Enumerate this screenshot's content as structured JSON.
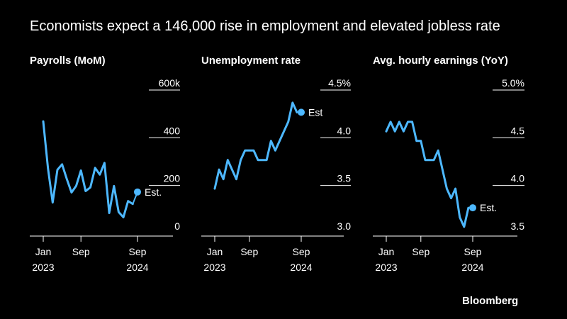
{
  "headline": "Economists expect a 146,000 rise in employment and elevated jobless rate",
  "source": "Bloomberg",
  "colors": {
    "line": "#4db8ff",
    "background": "#000000",
    "grid": "#ffffff",
    "text": "#ffffff"
  },
  "chart_data": [
    {
      "type": "line",
      "title": "Payrolls (MoM)",
      "ylim": [
        0,
        600
      ],
      "yticks": [
        {
          "value": 0,
          "label": "0"
        },
        {
          "value": 200,
          "label": "200"
        },
        {
          "value": 400,
          "label": "400"
        },
        {
          "value": 600,
          "label": "600k"
        }
      ],
      "xticks": [
        {
          "value": 0,
          "label": "Jan",
          "sub": "2023"
        },
        {
          "value": 8,
          "label": "Sep",
          "sub": ""
        },
        {
          "value": 20,
          "label": "Sep",
          "sub": "2024"
        }
      ],
      "x": [
        0,
        1,
        2,
        3,
        4,
        5,
        6,
        7,
        8,
        9,
        10,
        11,
        12,
        13,
        14,
        15,
        16,
        17,
        18,
        19
      ],
      "values": [
        442,
        245,
        102,
        239,
        262,
        200,
        144,
        172,
        236,
        150,
        165,
        247,
        219,
        268,
        58,
        171,
        62,
        40,
        108,
        96
      ],
      "estimate": {
        "x": 20,
        "value": 146,
        "label": "Est."
      }
    },
    {
      "type": "line",
      "title": "Unemployment rate",
      "ylim": [
        3.0,
        4.5
      ],
      "yticks": [
        {
          "value": 3.0,
          "label": "3.0"
        },
        {
          "value": 3.5,
          "label": "3.5"
        },
        {
          "value": 4.0,
          "label": "4.0"
        },
        {
          "value": 4.5,
          "label": "4.5%"
        }
      ],
      "xticks": [
        {
          "value": 0,
          "label": "Jan",
          "sub": "2023"
        },
        {
          "value": 8,
          "label": "Sep",
          "sub": ""
        },
        {
          "value": 20,
          "label": "Sep",
          "sub": "2024"
        }
      ],
      "x": [
        0,
        1,
        2,
        3,
        4,
        5,
        6,
        7,
        8,
        9,
        10,
        11,
        12,
        13,
        14,
        15,
        16,
        17,
        18,
        19
      ],
      "values": [
        3.4,
        3.6,
        3.5,
        3.7,
        3.6,
        3.5,
        3.7,
        3.8,
        3.8,
        3.8,
        3.7,
        3.7,
        3.7,
        3.9,
        3.8,
        3.9,
        4.0,
        4.1,
        4.3,
        4.2
      ],
      "estimate": {
        "x": 20,
        "value": 4.2,
        "label": "Est"
      }
    },
    {
      "type": "line",
      "title": "Avg. hourly earnings (YoY)",
      "ylim": [
        3.5,
        5.0
      ],
      "yticks": [
        {
          "value": 3.5,
          "label": "3.5"
        },
        {
          "value": 4.0,
          "label": "4.0"
        },
        {
          "value": 4.5,
          "label": "4.5"
        },
        {
          "value": 5.0,
          "label": "5.0%"
        }
      ],
      "xticks": [
        {
          "value": 0,
          "label": "Jan",
          "sub": "2023"
        },
        {
          "value": 8,
          "label": "Sep",
          "sub": ""
        },
        {
          "value": 20,
          "label": "Sep",
          "sub": "2024"
        }
      ],
      "x": [
        0,
        1,
        2,
        3,
        4,
        5,
        6,
        7,
        8,
        9,
        10,
        11,
        12,
        13,
        14,
        15,
        16,
        17,
        18,
        19
      ],
      "values": [
        4.5,
        4.6,
        4.5,
        4.6,
        4.5,
        4.6,
        4.6,
        4.4,
        4.4,
        4.2,
        4.2,
        4.2,
        4.3,
        4.1,
        3.9,
        3.8,
        3.9,
        3.6,
        3.5,
        3.7
      ],
      "estimate": {
        "x": 20,
        "value": 3.7,
        "label": "Est."
      }
    }
  ]
}
